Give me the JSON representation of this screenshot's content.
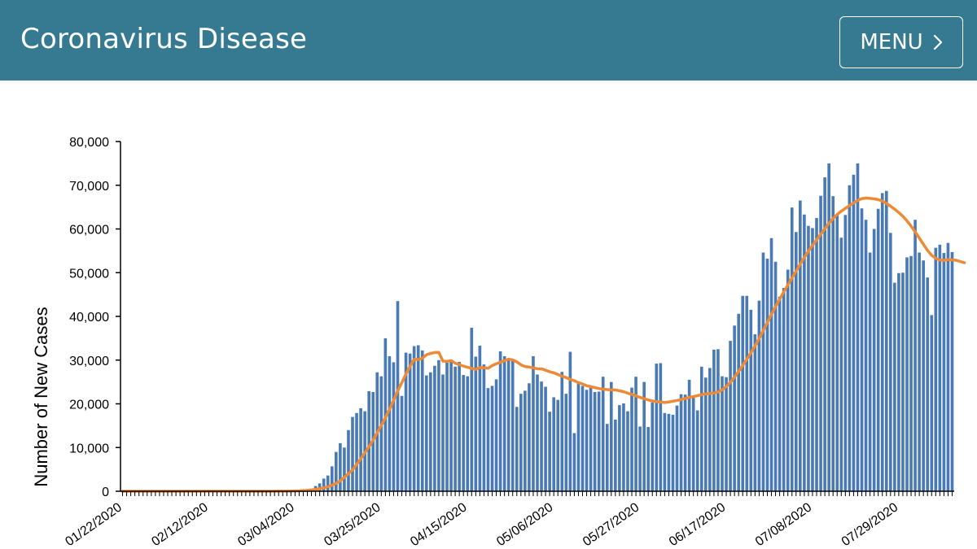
{
  "header": {
    "title": "Coronavirus Disease",
    "menu_label": "MENU",
    "menu_icon": "chevron-right-icon",
    "background_color": "#357a91"
  },
  "chart_data": {
    "type": "bar",
    "ylabel": "Number of New Cases",
    "ylim": [
      0,
      80000
    ],
    "y_ticks": [
      {
        "value": 0,
        "label": "0"
      },
      {
        "value": 10000,
        "label": "10,000"
      },
      {
        "value": 20000,
        "label": "20,000"
      },
      {
        "value": 30000,
        "label": "30,000"
      },
      {
        "value": 40000,
        "label": "40,000"
      },
      {
        "value": 50000,
        "label": "50,000"
      },
      {
        "value": 60000,
        "label": "60,000"
      },
      {
        "value": 70000,
        "label": "70,000"
      },
      {
        "value": 80000,
        "label": "80,000"
      }
    ],
    "x_tick_labels": [
      "01/22/2020",
      "02/12/2020",
      "03/04/2020",
      "03/25/2020",
      "04/15/2020",
      "05/06/2020",
      "05/27/2020",
      "06/17/2020",
      "07/08/2020",
      "07/29/2020"
    ],
    "x_start": "01/22/2020",
    "x_end": "08/11/2020",
    "grid": false,
    "bar_color": "#4a7ab5",
    "line_color": "#ee8a35",
    "series": [
      {
        "type": "bar",
        "values": [
          0,
          0,
          0,
          1,
          0,
          1,
          0,
          0,
          3,
          0,
          1,
          0,
          0,
          1,
          0,
          0,
          0,
          0,
          0,
          0,
          1,
          0,
          0,
          0,
          0,
          0,
          0,
          0,
          0,
          3,
          0,
          1,
          1,
          9,
          14,
          14,
          18,
          19,
          44,
          45,
          66,
          99,
          182,
          321,
          384,
          485,
          584,
          1200,
          1800,
          2900,
          3600,
          5700,
          9000,
          11000,
          10000,
          14000,
          17000,
          17900,
          19000,
          18300,
          22900,
          22700,
          27200,
          26300,
          35000,
          30900,
          29500,
          43500,
          21800,
          31700,
          31500,
          33200,
          33400,
          32200,
          26500,
          27200,
          28700,
          30000,
          26700,
          29400,
          29800,
          28500,
          29600,
          26600,
          26300,
          37400,
          30800,
          33300,
          29000,
          23600,
          24100,
          25600,
          32000,
          30900,
          30400,
          29900,
          19300,
          22300,
          23000,
          24700,
          30900,
          26700,
          25100,
          23900,
          18200,
          21500,
          20900,
          27300,
          22300,
          31900,
          13300,
          24600,
          24100,
          23200,
          23800,
          22700,
          22800,
          26200,
          15400,
          25000,
          16400,
          19700,
          20100,
          18300,
          23700,
          26200,
          14800,
          25000,
          14700,
          20300,
          29200,
          29300,
          17900,
          17700,
          17500,
          19600,
          22200,
          22100,
          25500,
          21800,
          18500,
          28500,
          26000,
          28200,
          32400,
          32500,
          26300,
          26100,
          34400,
          37900,
          40600,
          44700,
          44700,
          41500,
          35900,
          43600,
          54600,
          53200,
          57900,
          52500,
          44500,
          46500,
          50700,
          64900,
          59300,
          66500,
          63300,
          60700,
          60200,
          62500,
          67600,
          71800,
          75000,
          67500,
          63200,
          58000,
          63200,
          70000,
          72400,
          75000,
          64700,
          62100,
          54600,
          60000,
          64600,
          68200,
          68700,
          59100,
          47700,
          49900,
          50000,
          53500,
          53800,
          62100,
          54600,
          52800,
          48900,
          40300,
          55700,
          56400,
          54500,
          56800,
          54700
        ]
      },
      {
        "type": "line",
        "values": [
          0,
          0,
          0,
          0,
          0,
          0,
          0,
          0,
          1,
          1,
          1,
          1,
          1,
          1,
          0,
          0,
          0,
          0,
          0,
          0,
          0,
          0,
          0,
          0,
          0,
          0,
          0,
          0,
          0,
          0,
          1,
          1,
          1,
          2,
          4,
          6,
          8,
          11,
          17,
          23,
          30,
          41,
          65,
          102,
          149,
          216,
          302,
          423,
          564,
          774,
          1038,
          1369,
          1826,
          2378,
          3203,
          4020,
          4892,
          6105,
          7424,
          8783,
          10171,
          11676,
          13394,
          15066,
          16834,
          18743,
          20769,
          22963,
          24837,
          26812,
          28547,
          30189,
          30131,
          30407,
          31223,
          31524,
          31739,
          31779,
          29767,
          29709,
          29892,
          29289,
          28975,
          28621,
          28367,
          28097,
          27896,
          28286,
          28239,
          28133,
          28750,
          29159,
          29500,
          29857,
          30223,
          30054,
          29598,
          28914,
          28534,
          28412,
          28219,
          28024,
          28012,
          27692,
          27340,
          27103,
          26727,
          26327,
          25994,
          25596,
          25281,
          24845,
          24549,
          24140,
          23929,
          23713,
          23495,
          23371,
          23255,
          23179,
          23177,
          22991,
          22768,
          22439,
          22174,
          21812,
          21471,
          21167,
          20883,
          20652,
          20500,
          20418,
          20307,
          20424,
          20597,
          20753,
          20978,
          21232,
          21464,
          21650,
          21864,
          22094,
          22257,
          22362,
          22452,
          22697,
          23205,
          23948,
          24946,
          26114,
          27399,
          28768,
          30213,
          31672,
          33227,
          34909,
          36726,
          38602,
          40451,
          42225,
          43936,
          45594,
          47218,
          48787,
          50354,
          51946,
          53481,
          54907,
          56230,
          57510,
          58782,
          60041,
          61276,
          62383,
          63313,
          64061,
          64706,
          65330,
          65965,
          66531,
          66929,
          67078,
          67002,
          66881,
          66714,
          66387,
          65853,
          65210,
          64528,
          63754,
          62894,
          61856,
          60660,
          59331,
          57926,
          56490,
          55105,
          53975,
          53285,
          52898,
          52814,
          52993,
          52940,
          52838,
          52536,
          52278
        ]
      }
    ]
  }
}
